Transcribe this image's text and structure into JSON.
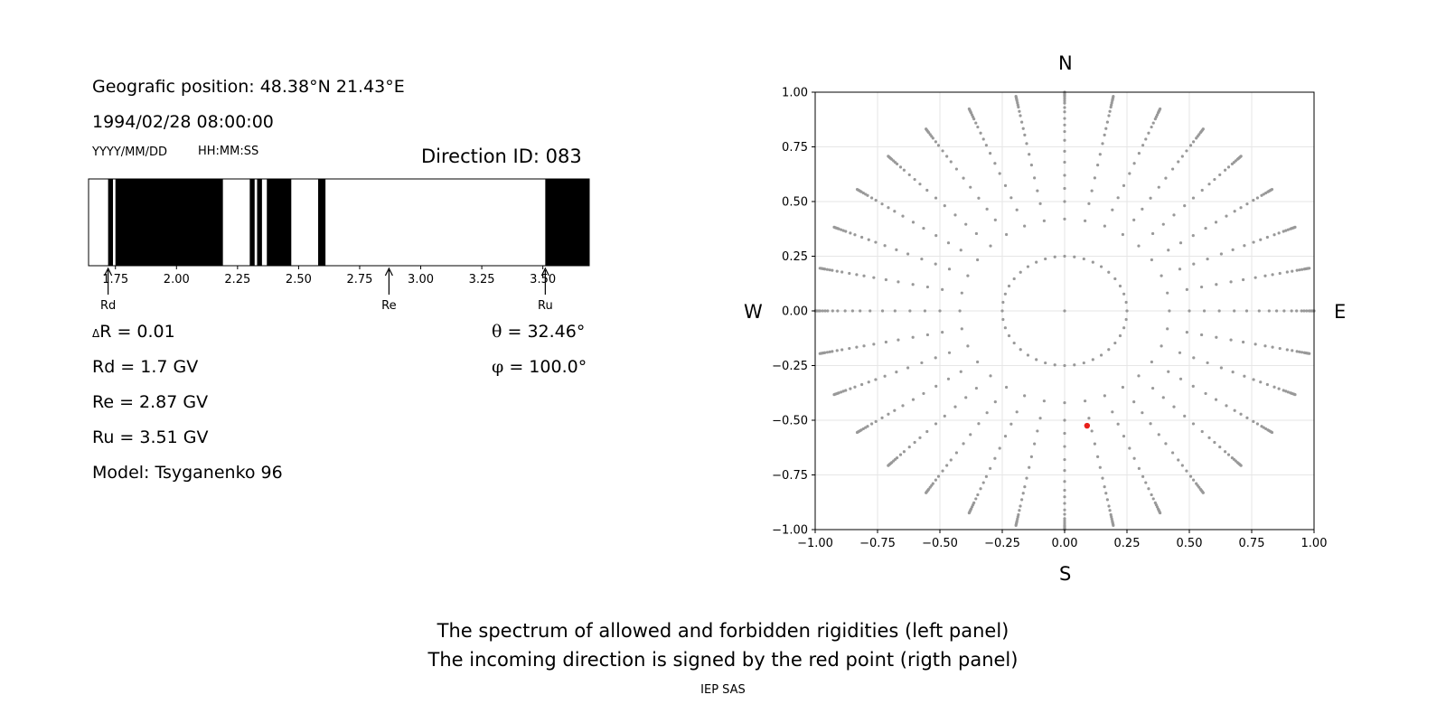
{
  "left_panel": {
    "position_label": "Geografic position: 48.38°N 21.43°E",
    "datetime": "1994/02/28 08:00:00",
    "date_format": "YYYY/MM/DD",
    "time_format": "HH:MM:SS",
    "direction_id": "Direction ID: 083",
    "delta_r": "R = 0.01",
    "delta_symbol": "Δ",
    "rd": "Rd = 1.7 GV",
    "re": "Re = 2.87 GV",
    "ru": "Ru = 3.51 GV",
    "model": "Model: Tsyganenko 96",
    "theta_symbol": "θ",
    "theta": " = 32.46°",
    "phi_symbol": "φ",
    "phi": " = 100.0°"
  },
  "right_panel": {
    "north": "N",
    "south": "S",
    "west": "W",
    "east": "E"
  },
  "footer": {
    "line1": "The spectrum of allowed and forbidden rigidities (left panel)",
    "line2": "The incoming direction is signed by the red point (rigth panel)",
    "credit": "IEP SAS"
  },
  "colors": {
    "forbidden": "#000000",
    "allowed": "#ffffff",
    "grid_point": "#999999",
    "direction_point": "#e8201b",
    "gridline": "#e6e6e6"
  },
  "chart_data": [
    {
      "type": "bar",
      "title": "",
      "xlabel": "",
      "ylabel": "",
      "xlim": [
        1.64,
        3.69
      ],
      "ticks": [
        1.75,
        2.0,
        2.25,
        2.5,
        2.75,
        3.0,
        3.25,
        3.5
      ],
      "tick_labels": [
        "1.75",
        "2.00",
        "2.25",
        "2.50",
        "2.75",
        "3.00",
        "3.25",
        "3.50"
      ],
      "forbidden_bands": [
        [
          1.72,
          1.74
        ],
        [
          1.75,
          2.19
        ],
        [
          2.3,
          2.32
        ],
        [
          2.33,
          2.35
        ],
        [
          2.37,
          2.47
        ],
        [
          2.58,
          2.61
        ],
        [
          3.51,
          3.69
        ]
      ],
      "markers": [
        {
          "label": "Rd",
          "value": 1.72
        },
        {
          "label": "Re",
          "value": 2.87
        },
        {
          "label": "Ru",
          "value": 3.51
        }
      ]
    },
    {
      "type": "scatter",
      "title": "",
      "xlabel": "",
      "ylabel": "",
      "xlim": [
        -1.0,
        1.0
      ],
      "ylim": [
        -1.0,
        1.0
      ],
      "ticks": [
        -1.0,
        -0.75,
        -0.5,
        -0.25,
        0.0,
        0.25,
        0.5,
        0.75,
        1.0
      ],
      "tick_labels": [
        "−1.00",
        "−0.75",
        "−0.50",
        "−0.25",
        "0.00",
        "0.25",
        "0.50",
        "0.75",
        "1.00"
      ],
      "grid": true,
      "pattern": {
        "center_point": [
          0,
          0
        ],
        "inner_ring_radius": 0.25,
        "inner_ring_count": 40,
        "spoke_count": 32,
        "spoke_radii": [
          0.42,
          0.5,
          0.56,
          0.62,
          0.68,
          0.73,
          0.78,
          0.82,
          0.85,
          0.88,
          0.91,
          0.93,
          0.95,
          0.96,
          0.97,
          0.98,
          0.985,
          0.99,
          0.995,
          1.0
        ]
      },
      "direction_point": {
        "x": 0.09,
        "y": -0.525
      }
    }
  ]
}
